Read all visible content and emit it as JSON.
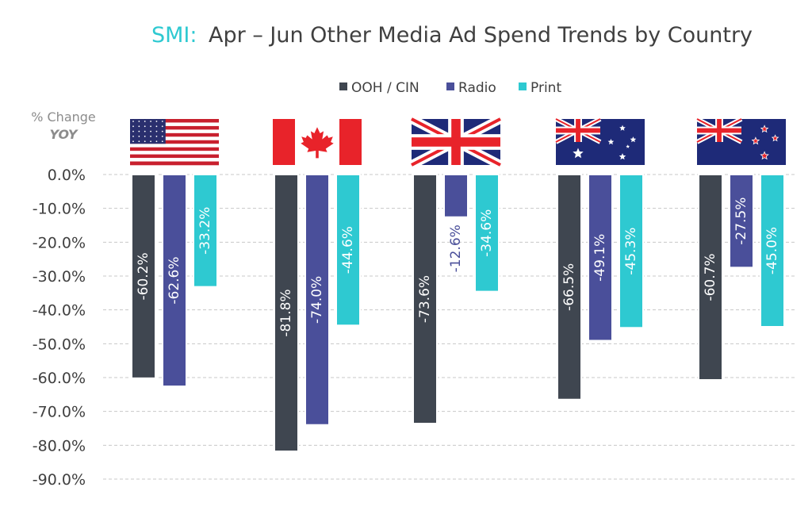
{
  "chart_data": {
    "type": "bar",
    "title_prefix": "SMI:",
    "title_main": "Apr – Jun Other Media Ad Spend Trends by Country",
    "ylabel_line1": "% Change",
    "ylabel_line2": "YOY",
    "categories": [
      "United States",
      "Canada",
      "United Kingdom",
      "Australia",
      "New Zealand"
    ],
    "category_icons": [
      "flag-usa",
      "flag-canada",
      "flag-uk",
      "flag-australia",
      "flag-new-zealand"
    ],
    "series": [
      {
        "name": "OOH / CIN",
        "color": "#3f4650",
        "values": [
          -60.2,
          -81.8,
          -73.6,
          -66.5,
          -60.7
        ]
      },
      {
        "name": "Radio",
        "color": "#4a4f9a",
        "values": [
          -62.6,
          -74.0,
          -12.6,
          -49.1,
          -27.5
        ]
      },
      {
        "name": "Print",
        "color": "#2ec9d1",
        "values": [
          -33.2,
          -44.6,
          -34.6,
          -45.3,
          -45.0
        ]
      }
    ],
    "ylim": [
      -90,
      0
    ],
    "yticks": [
      0,
      -10,
      -20,
      -30,
      -40,
      -50,
      -60,
      -70,
      -80,
      -90
    ],
    "ytick_labels": [
      "0.0%",
      "-10.0%",
      "-20.0%",
      "-30.0%",
      "-40.0%",
      "-50.0%",
      "-60.0%",
      "-70.0%",
      "-80.0%",
      "-90.0%"
    ],
    "value_format": "{v}%",
    "grid": true,
    "legend_position": "top-center",
    "colors": {
      "accent": "#2ec9d1",
      "title": "#404040",
      "grid": "#c8c8c8",
      "label_dark_bar": "#ffffff",
      "label_on_white": "#4a4f9a",
      "flag_red": "#e8232a",
      "flag_blue": "#1e2a78"
    }
  }
}
